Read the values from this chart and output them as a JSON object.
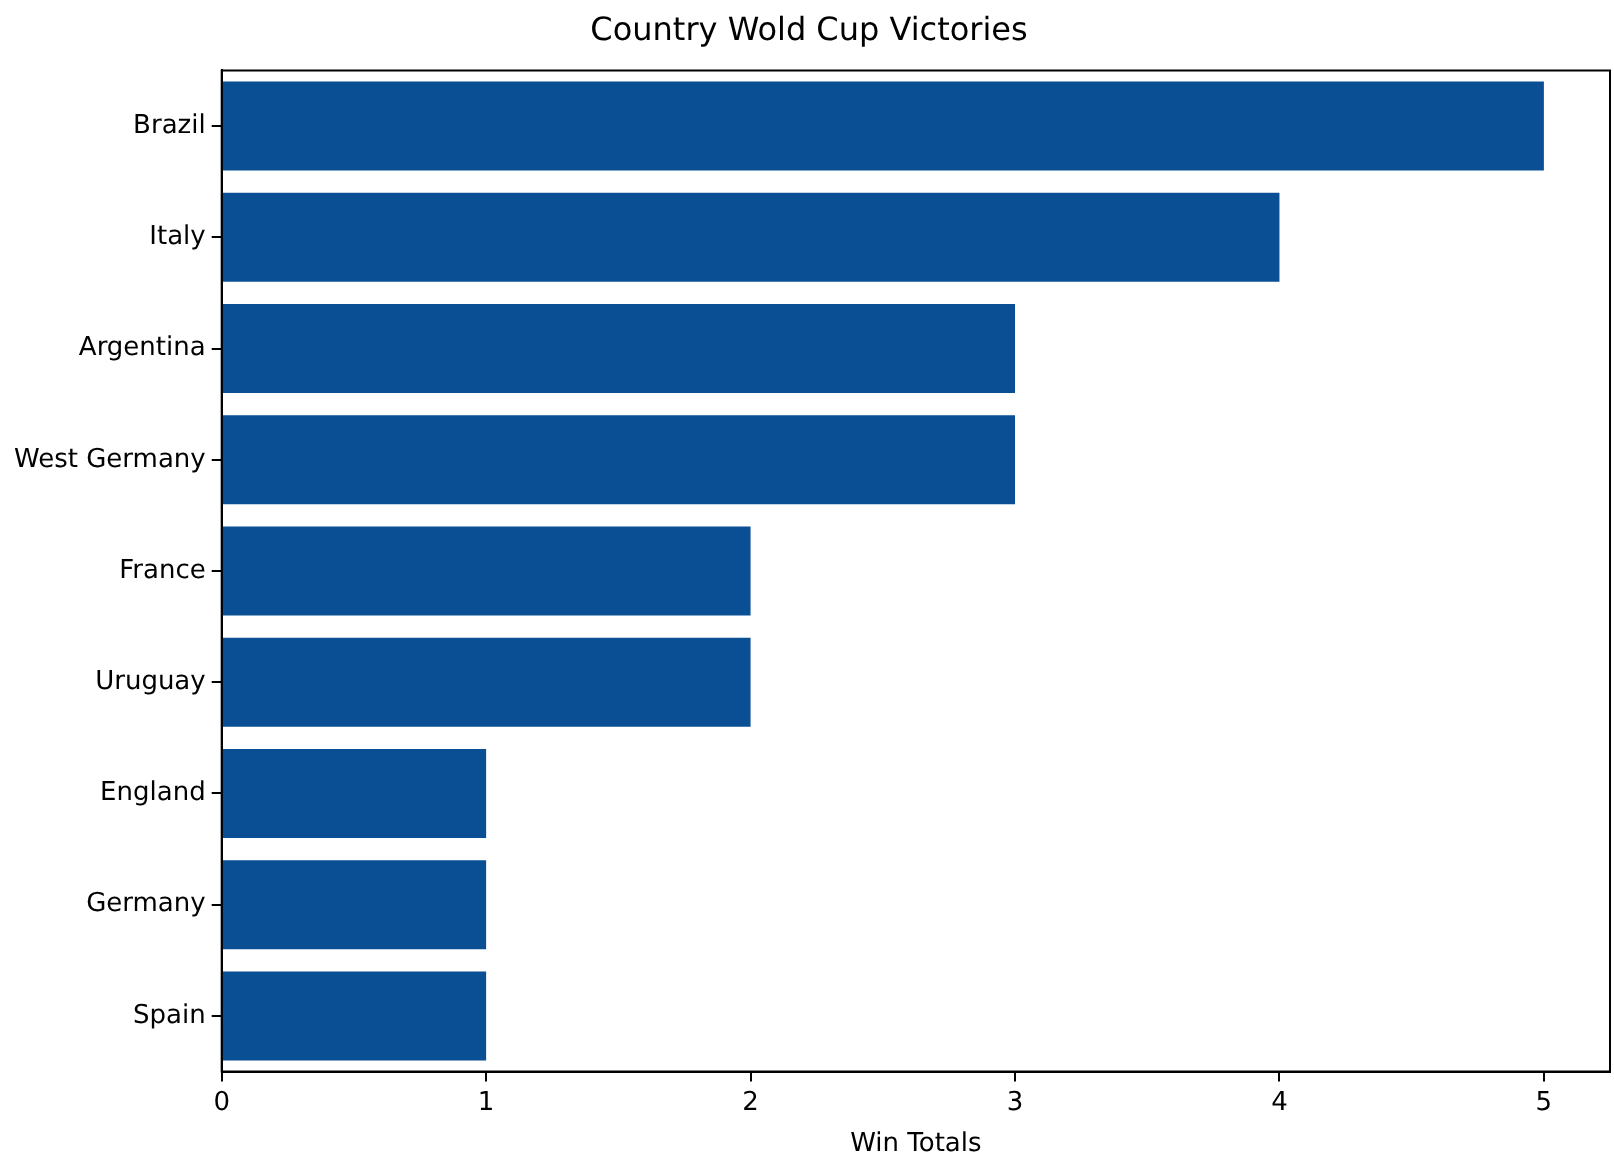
{
  "chart_data": {
    "type": "bar",
    "orientation": "horizontal",
    "title": "Country Wold Cup Victories",
    "xlabel": "Win Totals",
    "categories": [
      "Brazil",
      "Italy",
      "Argentina",
      "West Germany",
      "France",
      "Uruguay",
      "England",
      "Germany",
      "Spain"
    ],
    "values": [
      5,
      4,
      3,
      3,
      2,
      2,
      1,
      1,
      1
    ],
    "color": "#0a4f94",
    "xlim": [
      0,
      5.25
    ],
    "xticks": [
      0,
      1,
      2,
      3,
      4,
      5
    ],
    "grid": false,
    "legend": false
  }
}
